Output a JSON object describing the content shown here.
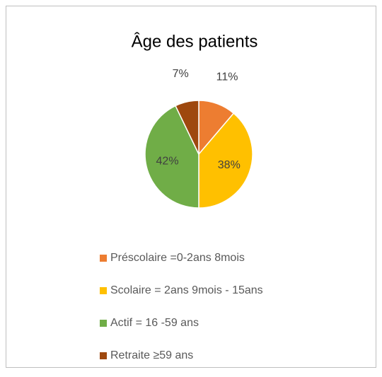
{
  "chart_data": {
    "type": "pie",
    "title": "Âge des patients",
    "categories": [
      "Préscolaire =0-2ans 8mois",
      "Scolaire = 2ans 9mois - 15ans",
      "Actif = 16 -59 ans",
      "Retraite ≥59 ans"
    ],
    "values": [
      11,
      38,
      42,
      7
    ],
    "value_labels": [
      "11%",
      "38%",
      "42%",
      "7%"
    ],
    "colors": [
      "#ED7D31",
      "#FFC000",
      "#70AD47",
      "#9E480E"
    ]
  }
}
